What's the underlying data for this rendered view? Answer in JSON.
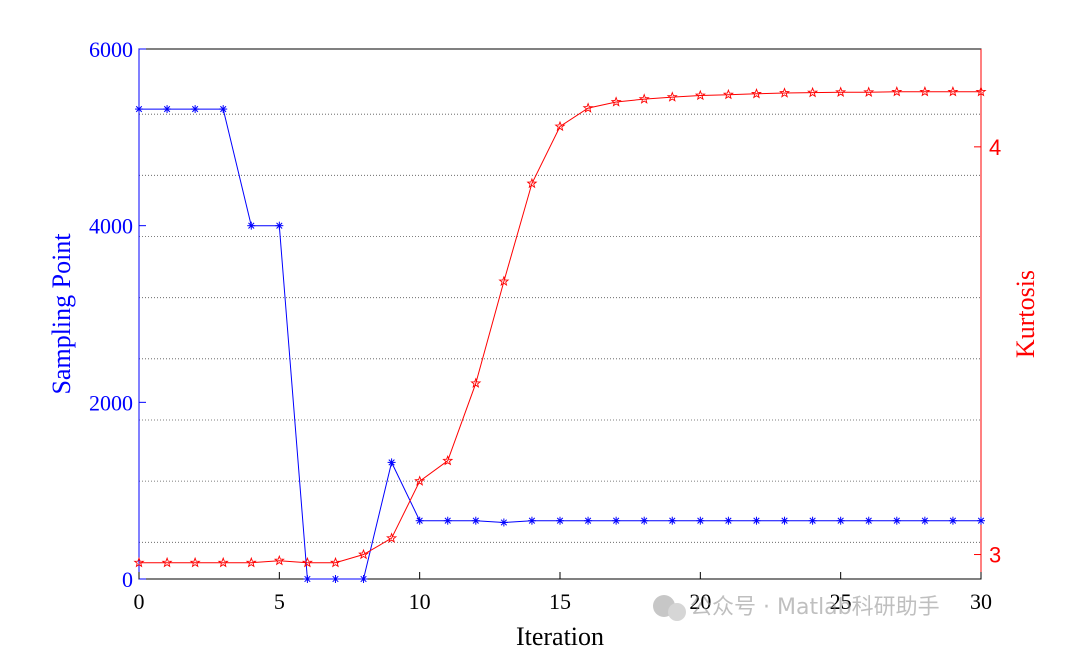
{
  "chart_data": {
    "type": "line",
    "xlabel": "Iteration",
    "ylabel_left": "Sampling Point",
    "ylabel_right": "Kurtosis",
    "xlim": [
      0,
      30
    ],
    "ylim_left": [
      0,
      6000
    ],
    "ylim_right": [
      2.94,
      4.24
    ],
    "x_ticks": [
      "0",
      "5",
      "10",
      "15",
      "20",
      "25",
      "30"
    ],
    "y_left_ticks": [
      "0",
      "2000",
      "4000",
      "6000"
    ],
    "y_right_ticks": [
      "3",
      "4"
    ],
    "grid": "dotted horizontal",
    "x": [
      0,
      1,
      2,
      3,
      4,
      5,
      6,
      7,
      8,
      9,
      10,
      11,
      12,
      13,
      14,
      15,
      16,
      17,
      18,
      19,
      20,
      21,
      22,
      23,
      24,
      25,
      26,
      27,
      28,
      29,
      30
    ],
    "series": [
      {
        "name": "Sampling Point",
        "axis": "left",
        "color": "#0000ff",
        "marker": "asterisk",
        "values": [
          5320,
          5320,
          5320,
          5320,
          4000,
          4000,
          0,
          0,
          0,
          1320,
          660,
          660,
          660,
          640,
          660,
          660,
          660,
          660,
          660,
          660,
          660,
          660,
          660,
          660,
          660,
          660,
          660,
          660,
          660,
          660,
          660
        ]
      },
      {
        "name": "Kurtosis",
        "axis": "right",
        "color": "#ff0000",
        "marker": "pentagram",
        "values": [
          2.98,
          2.98,
          2.98,
          2.98,
          2.98,
          2.985,
          2.98,
          2.98,
          3.0,
          3.04,
          3.18,
          3.23,
          3.42,
          3.67,
          3.91,
          4.05,
          4.095,
          4.11,
          4.117,
          4.122,
          4.126,
          4.128,
          4.13,
          4.132,
          4.133,
          4.134,
          4.134,
          4.135,
          4.135,
          4.135,
          4.135
        ]
      }
    ]
  },
  "colors": {
    "left_axis": "#0000ff",
    "right_axis": "#ff0000",
    "grid": "#555555"
  },
  "watermark": "公众号 · Matlab科研助手"
}
